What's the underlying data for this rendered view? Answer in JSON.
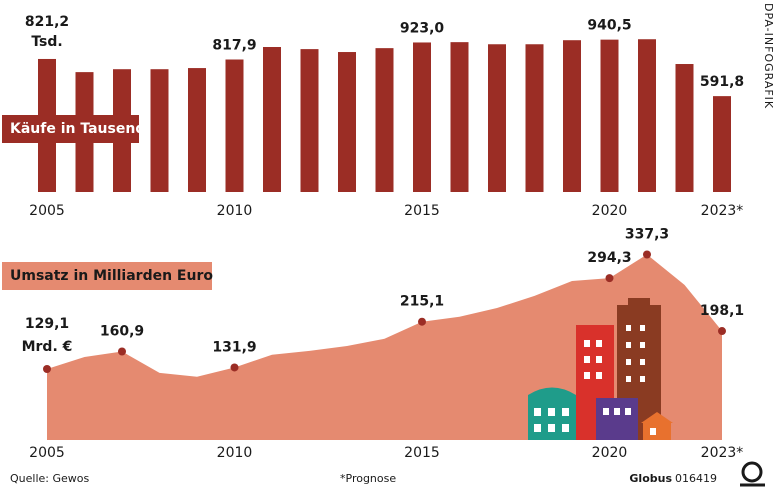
{
  "chart_data": [
    {
      "type": "bar",
      "title": "Käufe in Tausend",
      "color": "#9b2d25",
      "categories": [
        "2005",
        null,
        null,
        null,
        null,
        "2010",
        null,
        null,
        null,
        null,
        "2015",
        null,
        null,
        null,
        null,
        "2020",
        null,
        null,
        "2023*"
      ],
      "values": [
        821.2,
        740,
        758,
        758,
        765,
        817.9,
        895,
        882,
        864,
        888,
        923.0,
        925,
        912,
        912,
        937,
        940.5,
        943,
        790,
        591.8
      ],
      "value_labels": [
        "821,2",
        null,
        null,
        null,
        null,
        "817,9",
        null,
        null,
        null,
        null,
        "923,0",
        null,
        null,
        null,
        null,
        "940,5",
        null,
        null,
        "591,8"
      ],
      "unit_label": "Tsd.",
      "ylim": [
        0,
        1000
      ]
    },
    {
      "type": "area",
      "title": "Umsatz in Milliarden Euro",
      "color": "#e58a70",
      "marker_color": "#9b2d25",
      "categories": [
        "2005",
        null,
        null,
        null,
        null,
        "2010",
        null,
        null,
        null,
        null,
        "2015",
        null,
        null,
        null,
        null,
        "2020",
        null,
        null,
        "2023*"
      ],
      "values": [
        129.1,
        151,
        160.9,
        122,
        115,
        131.9,
        155,
        162,
        171,
        184,
        215.1,
        224,
        240,
        262,
        289,
        294.3,
        337.3,
        282,
        198.1
      ],
      "value_labels": [
        "129,1",
        null,
        "160,9",
        null,
        null,
        "131,9",
        null,
        null,
        null,
        null,
        "215,1",
        null,
        null,
        null,
        null,
        "294,3",
        "337,3",
        null,
        "198,1"
      ],
      "unit_label": "Mrd. €",
      "ylim": [
        0,
        400
      ]
    }
  ],
  "source": "Quelle: Gewos",
  "note": "*Prognose",
  "brand": "Globus",
  "id": "016419",
  "credit": "DPA-INFOGRAFIK"
}
